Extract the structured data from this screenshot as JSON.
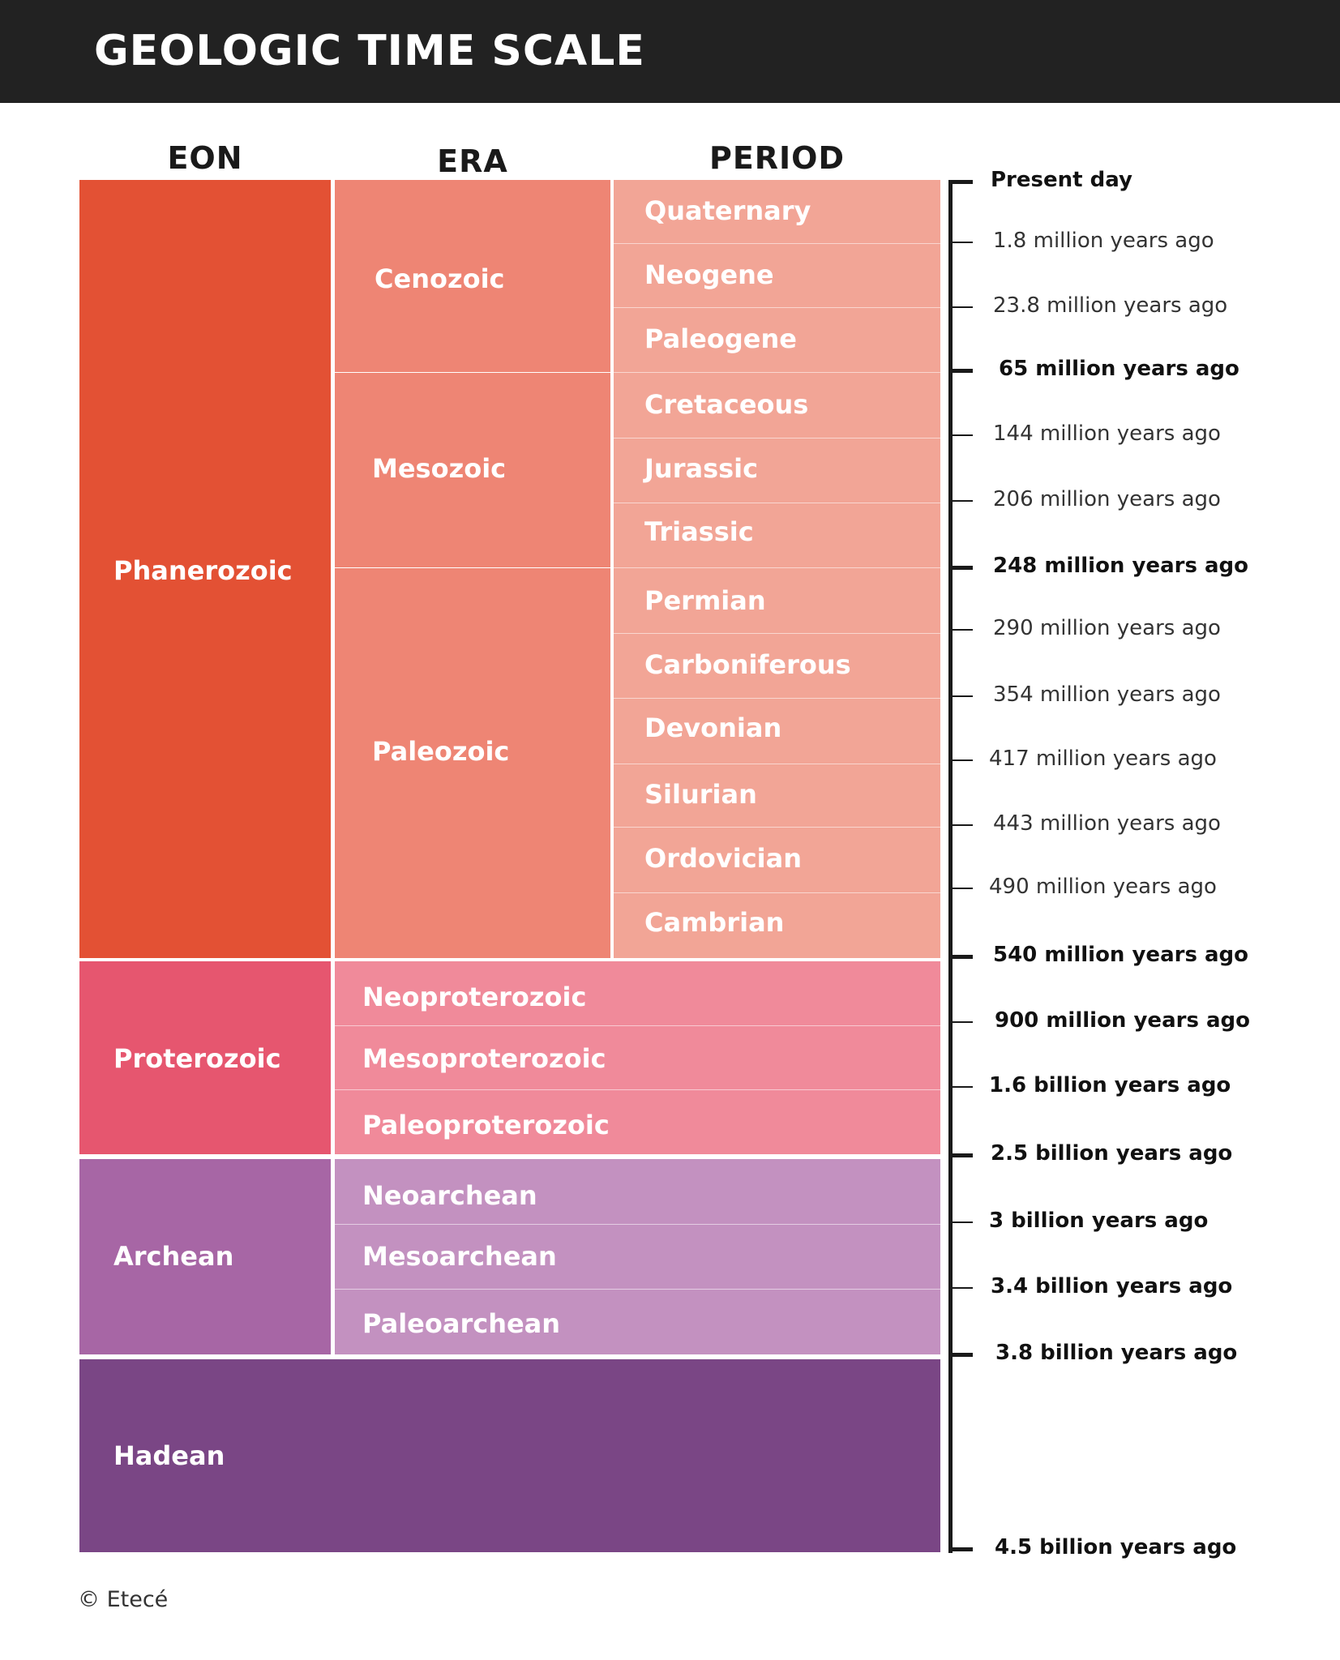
{
  "header": {
    "title": "GEOLOGIC TIME SCALE"
  },
  "columns": {
    "eon": "EON",
    "era": "ERA",
    "period": "PERIOD"
  },
  "eons": [
    {
      "name": "Phanerozoic",
      "color": "#E35134"
    },
    {
      "name": "Proterozoic",
      "color": "#E6566F"
    },
    {
      "name": "Archean",
      "color": "#A766A5"
    },
    {
      "name": "Hadean",
      "color": "#7A4685"
    }
  ],
  "eras": [
    {
      "name": "Cenozoic",
      "color": "#EE8574"
    },
    {
      "name": "Mesozoic",
      "color": "#EE8574"
    },
    {
      "name": "Paleozoic",
      "color": "#EE8574"
    }
  ],
  "periods": [
    "Quaternary",
    "Neogene",
    "Paleogene",
    "Cretaceous",
    "Jurassic",
    "Triassic",
    "Permian",
    "Carboniferous",
    "Devonian",
    "Silurian",
    "Ordovician",
    "Cambrian"
  ],
  "period_color": "#F2A596",
  "proterozoic_eras": {
    "items": [
      "Neoproterozoic",
      "Mesoproterozoic",
      "Paleoproterozoic"
    ],
    "color": "#F08A9A"
  },
  "archean_eras": {
    "items": [
      "Neoarchean",
      "Mesoarchean",
      "Paleoarchean"
    ],
    "color": "#C391C0"
  },
  "timeline": [
    {
      "label": "Present day",
      "emphasis": "major"
    },
    {
      "label": "1.8 million years ago",
      "emphasis": "minor"
    },
    {
      "label": "23.8 million years ago",
      "emphasis": "minor"
    },
    {
      "label": "65 million years ago",
      "emphasis": "major"
    },
    {
      "label": "144 million years ago",
      "emphasis": "minor"
    },
    {
      "label": "206 million years ago",
      "emphasis": "minor"
    },
    {
      "label": "248 million years ago",
      "emphasis": "major"
    },
    {
      "label": "290 million years ago",
      "emphasis": "minor"
    },
    {
      "label": "354 million years ago",
      "emphasis": "minor"
    },
    {
      "label": "417 million years ago",
      "emphasis": "minor"
    },
    {
      "label": "443 million years ago",
      "emphasis": "minor"
    },
    {
      "label": "490 million years ago",
      "emphasis": "minor"
    },
    {
      "label": "540 million years ago",
      "emphasis": "major"
    },
    {
      "label": "900 million years ago",
      "emphasis": "minor"
    },
    {
      "label": "1.6 billion years ago",
      "emphasis": "minor"
    },
    {
      "label": "2.5 billion years ago",
      "emphasis": "major"
    },
    {
      "label": "3 billion years ago",
      "emphasis": "minor"
    },
    {
      "label": "3.4 billion years ago",
      "emphasis": "minor"
    },
    {
      "label": "3.8 billion years ago",
      "emphasis": "major"
    },
    {
      "label": "4.5 billion years ago",
      "emphasis": "major"
    }
  ],
  "credit": "© Etecé"
}
